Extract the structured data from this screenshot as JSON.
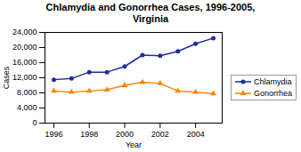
{
  "chart_data": {
    "type": "line",
    "title": "Chlamydia and Gonorrhea Cases, 1996-2005,\nVirginia",
    "xlabel": "Year",
    "ylabel": "Cases",
    "x": [
      1996,
      1997,
      1998,
      1999,
      2000,
      2001,
      2002,
      2003,
      2004,
      2005
    ],
    "series": [
      {
        "name": "Chlamydia",
        "color": "#1f2d9e",
        "marker": "circle",
        "values": [
          11500,
          11800,
          13500,
          13500,
          15000,
          18000,
          17800,
          19000,
          21000,
          22500
        ]
      },
      {
        "name": "Gonorrhea",
        "color": "#f4860a",
        "marker": "triangle",
        "values": [
          8500,
          8200,
          8500,
          8800,
          10000,
          10800,
          10500,
          8500,
          8200,
          7800
        ]
      }
    ],
    "xlim": [
      1995.5,
      2005.5
    ],
    "xticks": [
      1996,
      1998,
      2000,
      2002,
      2004
    ],
    "ylim": [
      0,
      24000
    ],
    "yticks": [
      0,
      {
        "value": 4000,
        "label": "4,000"
      },
      {
        "value": 8000,
        "label": "8,000"
      },
      {
        "value": 12000,
        "label": "12,000"
      },
      {
        "value": 16000,
        "label": "16,000"
      },
      {
        "value": 20000,
        "label": "20,000"
      },
      {
        "value": 24000,
        "label": "24,000"
      }
    ],
    "grid": false,
    "legend": "center right"
  }
}
